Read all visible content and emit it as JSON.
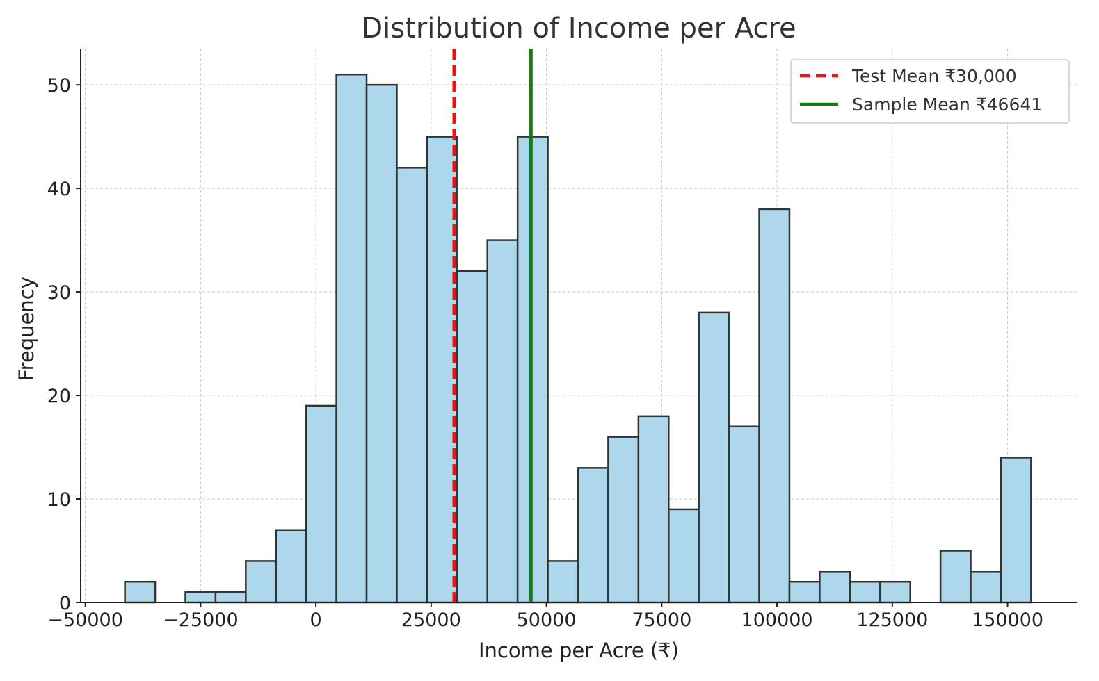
{
  "chart_data": {
    "type": "bar",
    "title": "Distribution of Income per Acre",
    "xlabel": "Income per Acre (₹)",
    "ylabel": "Frequency",
    "xlim": [
      -51000,
      165000
    ],
    "ylim": [
      0,
      53.5
    ],
    "x_ticks": [
      -50000,
      -25000,
      0,
      25000,
      50000,
      75000,
      100000,
      125000,
      150000
    ],
    "x_tick_labels": [
      "−50000",
      "−25000",
      "0",
      "25000",
      "50000",
      "75000",
      "100000",
      "125000",
      "150000"
    ],
    "y_ticks": [
      0,
      10,
      20,
      30,
      40,
      50
    ],
    "y_tick_labels": [
      "0",
      "10",
      "20",
      "30",
      "40",
      "50"
    ],
    "grid": true,
    "bar_color": "#add8ec",
    "bar_edge_color": "#333333",
    "bin_width": 6550,
    "bins": [
      {
        "start": -41400,
        "count": 2
      },
      {
        "start": -34850,
        "count": 0
      },
      {
        "start": -28300,
        "count": 1
      },
      {
        "start": -21750,
        "count": 1
      },
      {
        "start": -15200,
        "count": 4
      },
      {
        "start": -8650,
        "count": 7
      },
      {
        "start": -2100,
        "count": 19
      },
      {
        "start": 4450,
        "count": 51
      },
      {
        "start": 11000,
        "count": 50
      },
      {
        "start": 17550,
        "count": 42
      },
      {
        "start": 24100,
        "count": 45
      },
      {
        "start": 30650,
        "count": 32
      },
      {
        "start": 37200,
        "count": 35
      },
      {
        "start": 43750,
        "count": 45
      },
      {
        "start": 50300,
        "count": 4
      },
      {
        "start": 56850,
        "count": 13
      },
      {
        "start": 63400,
        "count": 16
      },
      {
        "start": 69950,
        "count": 18
      },
      {
        "start": 76500,
        "count": 9
      },
      {
        "start": 83050,
        "count": 28
      },
      {
        "start": 89600,
        "count": 17
      },
      {
        "start": 96150,
        "count": 38
      },
      {
        "start": 102700,
        "count": 2
      },
      {
        "start": 109250,
        "count": 3
      },
      {
        "start": 115800,
        "count": 2
      },
      {
        "start": 122350,
        "count": 2
      },
      {
        "start": 128900,
        "count": 0
      },
      {
        "start": 135450,
        "count": 5
      },
      {
        "start": 142000,
        "count": 3
      },
      {
        "start": 148550,
        "count": 14
      }
    ],
    "lines": [
      {
        "name": "Test Mean ₹30,000",
        "x": 30000,
        "color": "#ee1111",
        "style": "dashed"
      },
      {
        "name": "Sample Mean ₹46641",
        "x": 46641,
        "color": "#108010",
        "style": "solid"
      }
    ],
    "legend_position": "top-right"
  }
}
